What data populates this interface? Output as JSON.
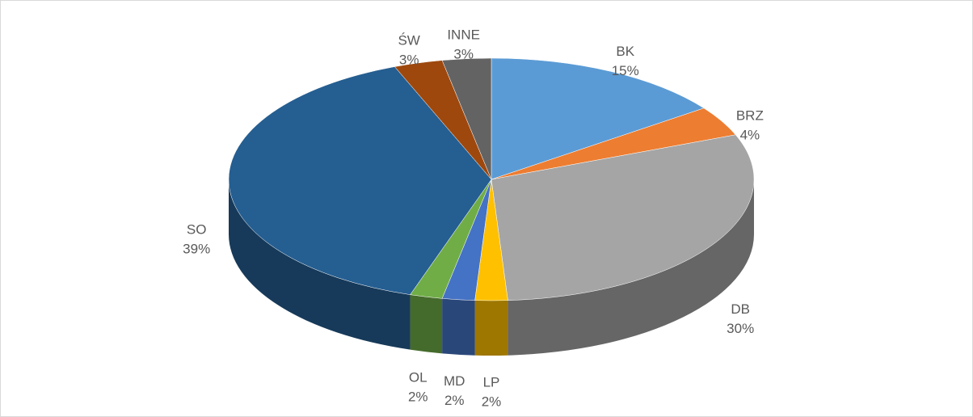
{
  "chart_data": {
    "type": "pie",
    "categories": [
      "BK",
      "BRZ",
      "DB",
      "LP",
      "MD",
      "OL",
      "SO",
      "ŚW",
      "INNE"
    ],
    "values": [
      15,
      4,
      30,
      2,
      2,
      2,
      39,
      3,
      3
    ],
    "value_labels": [
      "15%",
      "4%",
      "30%",
      "2%",
      "2%",
      "2%",
      "39%",
      "3%",
      "3%"
    ],
    "colors": [
      "#5b9bd5",
      "#ed7d31",
      "#a5a5a5",
      "#ffc000",
      "#4472c4",
      "#70ad47",
      "#255e91",
      "#9e480e",
      "#636363"
    ]
  }
}
